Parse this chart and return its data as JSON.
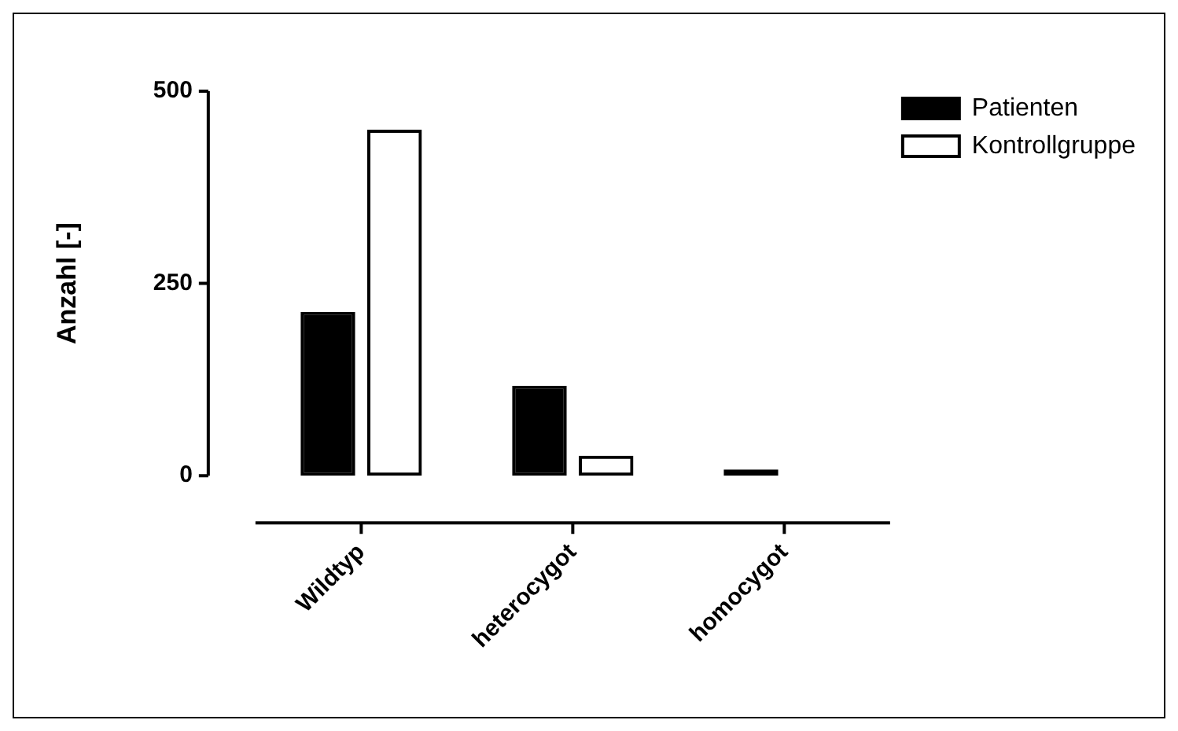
{
  "chart_data": {
    "type": "bar",
    "ylabel": "Anzahl [-]",
    "categories": [
      "Wildtyp",
      "heterocygot",
      "homocygot"
    ],
    "series": [
      {
        "name": "Patienten",
        "color": "#000000",
        "values": [
          213,
          117,
          8
        ]
      },
      {
        "name": "Kontrollgruppe",
        "color": "#000000",
        "values": [
          450,
          26,
          0
        ]
      }
    ],
    "ylim": [
      0,
      500
    ],
    "yticks": [
      0,
      250,
      500
    ],
    "grid": false,
    "legend": "top right"
  }
}
